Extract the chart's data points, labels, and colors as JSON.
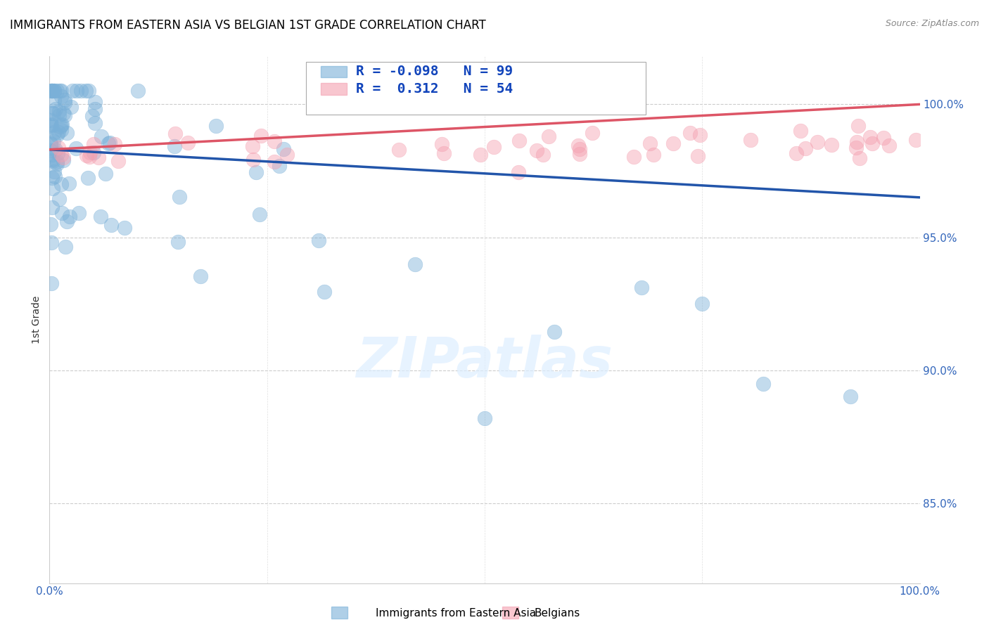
{
  "title": "IMMIGRANTS FROM EASTERN ASIA VS BELGIAN 1ST GRADE CORRELATION CHART",
  "source": "Source: ZipAtlas.com",
  "ylabel": "1st Grade",
  "ylim": [
    0.82,
    1.018
  ],
  "xlim": [
    0.0,
    1.0
  ],
  "blue_R": -0.098,
  "blue_N": 99,
  "pink_R": 0.312,
  "pink_N": 54,
  "blue_color": "#7ab0d8",
  "pink_color": "#f4a0b0",
  "blue_line_color": "#2255aa",
  "pink_line_color": "#dd5566",
  "legend_blue_label": "Immigrants from Eastern Asia",
  "legend_pink_label": "Belgians",
  "watermark": "ZIPatlas",
  "ytick_values": [
    0.85,
    0.9,
    0.95,
    1.0
  ],
  "ytick_labels": [
    "85.0%",
    "90.0%",
    "95.0%",
    "100.0%"
  ],
  "blue_line_start_y": 0.983,
  "blue_line_end_y": 0.965,
  "pink_line_start_y": 0.983,
  "pink_line_end_y": 1.0
}
